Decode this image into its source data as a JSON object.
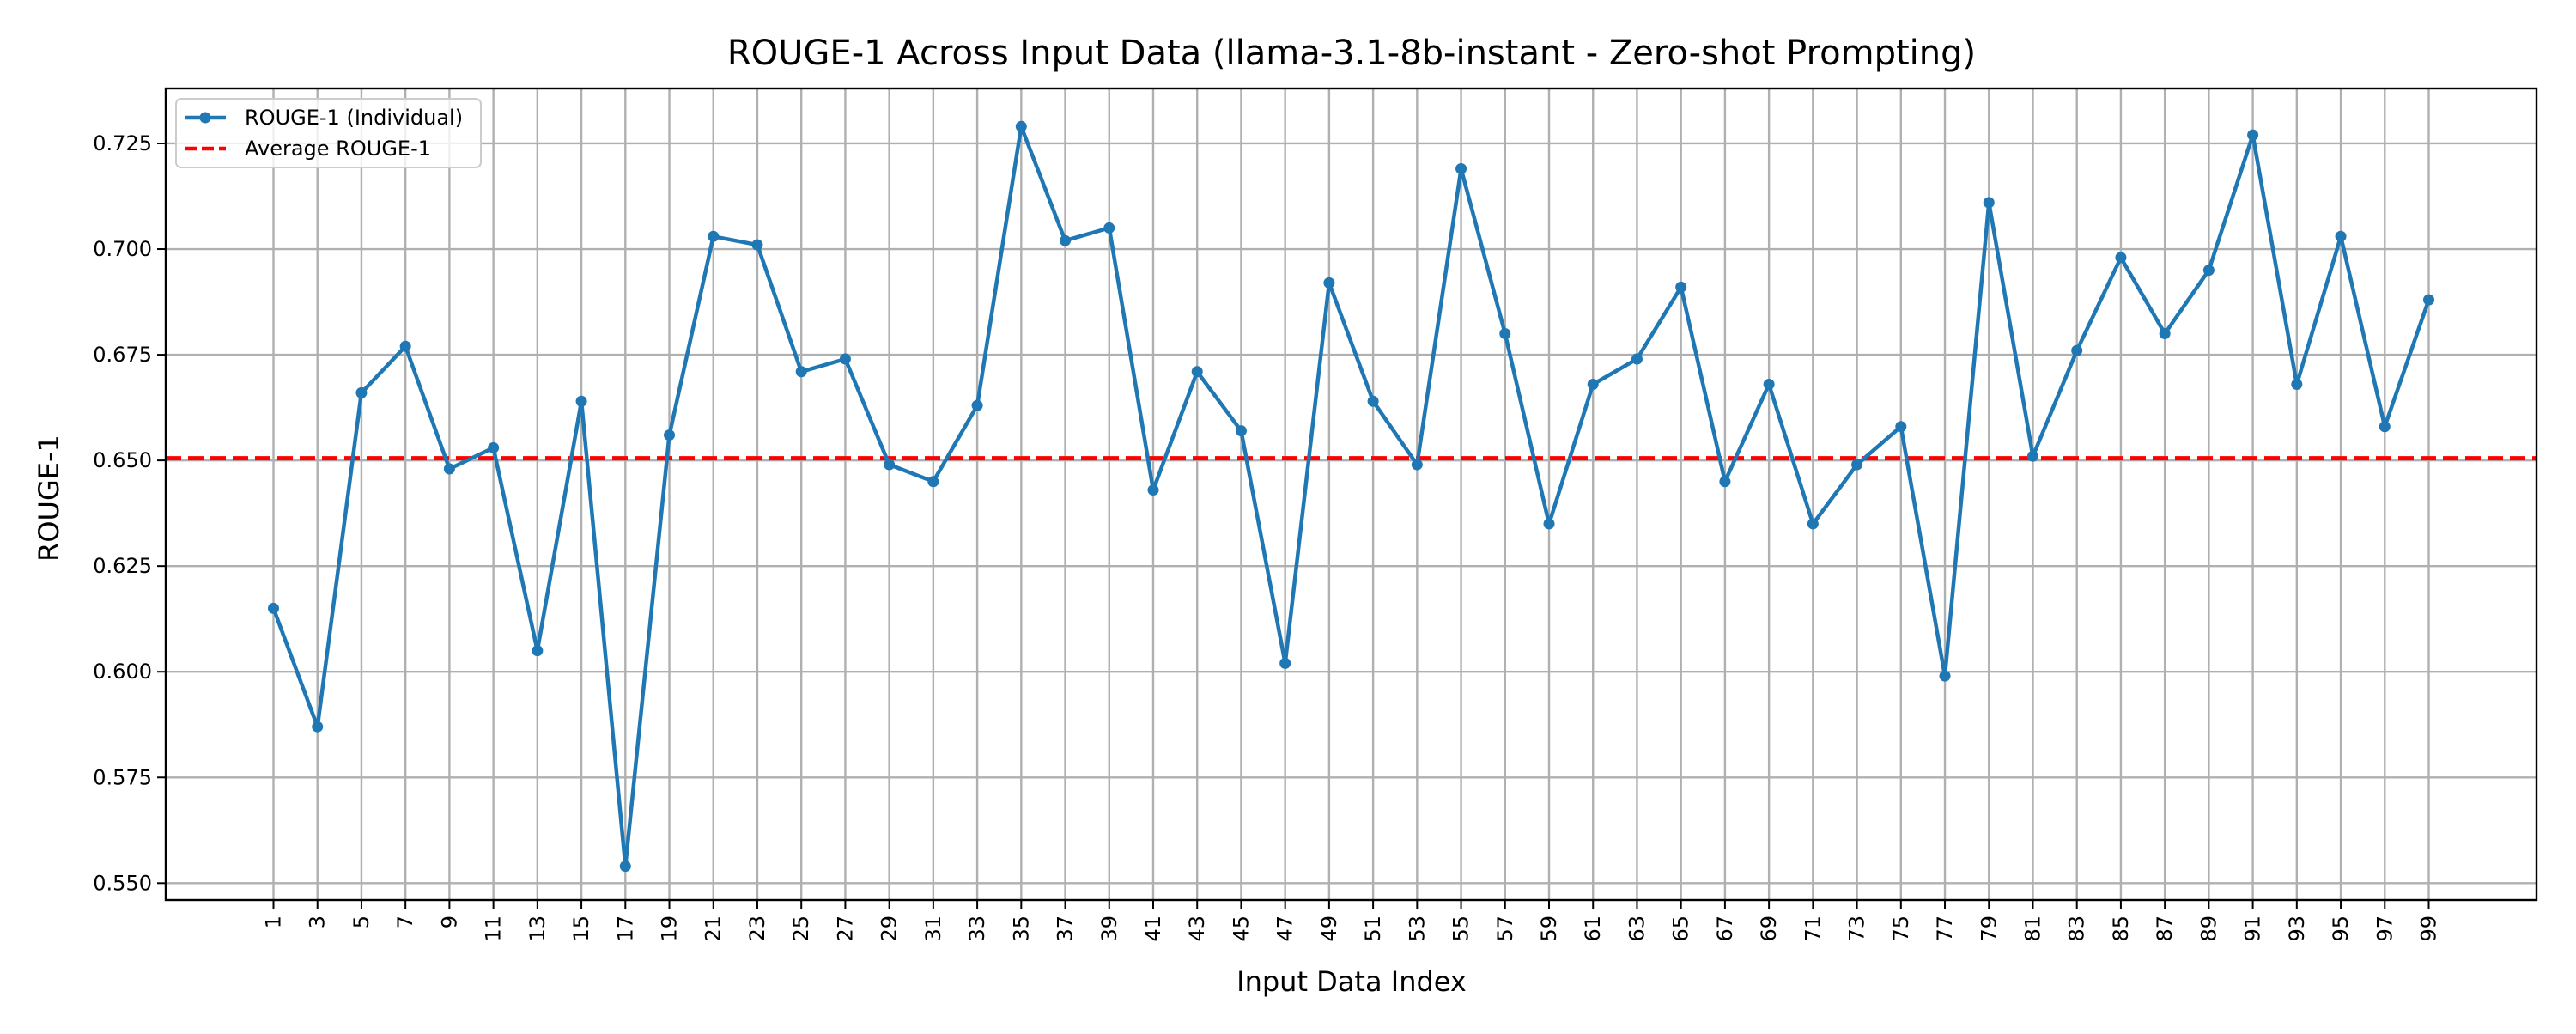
{
  "chart_data": {
    "type": "line",
    "title": "ROUGE-1 Across Input Data (llama-3.1-8b-instant - Zero-shot Prompting)",
    "xlabel": "Input Data Index",
    "ylabel": "ROUGE-1",
    "x": [
      1,
      3,
      5,
      7,
      9,
      11,
      13,
      15,
      17,
      19,
      21,
      23,
      25,
      27,
      29,
      31,
      33,
      35,
      37,
      39,
      41,
      43,
      45,
      47,
      49,
      51,
      53,
      55,
      57,
      59,
      61,
      63,
      65,
      67,
      69,
      71,
      73,
      75,
      77,
      79,
      81,
      83,
      85,
      87,
      89,
      91,
      93,
      95,
      97,
      99
    ],
    "x_tick_labels": [
      "1",
      "3",
      "5",
      "7",
      "9",
      "11",
      "13",
      "15",
      "17",
      "19",
      "21",
      "23",
      "25",
      "27",
      "29",
      "31",
      "33",
      "35",
      "37",
      "39",
      "41",
      "43",
      "45",
      "47",
      "49",
      "51",
      "53",
      "55",
      "57",
      "59",
      "61",
      "63",
      "65",
      "67",
      "69",
      "71",
      "73",
      "75",
      "77",
      "79",
      "81",
      "83",
      "85",
      "87",
      "89",
      "91",
      "93",
      "95",
      "97",
      "99"
    ],
    "xlim": [
      -3.9,
      103.9
    ],
    "ylim": [
      0.546,
      0.738
    ],
    "y_ticks": [
      0.55,
      0.575,
      0.6,
      0.625,
      0.65,
      0.675,
      0.7,
      0.725
    ],
    "y_tick_labels": [
      "0.550",
      "0.575",
      "0.600",
      "0.625",
      "0.650",
      "0.675",
      "0.700",
      "0.725"
    ],
    "grid": true,
    "legend_position": "top-left",
    "series": [
      {
        "name": "ROUGE-1 (Individual)",
        "style": "line-with-markers",
        "color": "#1f77b4",
        "values": [
          0.615,
          0.587,
          0.666,
          0.677,
          0.648,
          0.653,
          0.605,
          0.664,
          0.554,
          0.656,
          0.703,
          0.701,
          0.671,
          0.674,
          0.649,
          0.645,
          0.663,
          0.729,
          0.702,
          0.705,
          0.643,
          0.671,
          0.657,
          0.602,
          0.692,
          0.664,
          0.649,
          0.719,
          0.68,
          0.635,
          0.668,
          0.674,
          0.691,
          0.645,
          0.668,
          0.635,
          0.649,
          0.658,
          0.599,
          0.711,
          0.651,
          0.676,
          0.698,
          0.68,
          0.695,
          0.727,
          0.668,
          0.703,
          0.658,
          0.688
        ]
      },
      {
        "name": "Average ROUGE-1",
        "style": "dashed-horizontal",
        "color": "#ff0000",
        "value": 0.6505
      }
    ]
  }
}
